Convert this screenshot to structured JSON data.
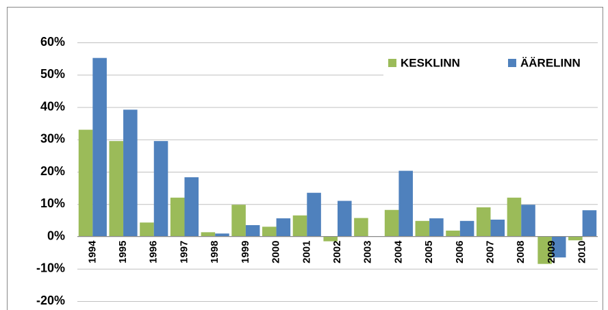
{
  "chart_data": {
    "type": "bar",
    "categories": [
      "1994",
      "1995",
      "1996",
      "1997",
      "1998",
      "1999",
      "2000",
      "2001",
      "2002",
      "2003",
      "2004",
      "2005",
      "2006",
      "2007",
      "2008",
      "2009",
      "2010"
    ],
    "series": [
      {
        "name": "KESKLINN",
        "color": "#9bbb59",
        "values": [
          33,
          29.5,
          4.3,
          12,
          1.3,
          9.8,
          3,
          6.5,
          -1.5,
          5.7,
          8.2,
          4.8,
          1.8,
          9,
          12,
          -8.5,
          -1.2
        ]
      },
      {
        "name": "ÄÄRELINN",
        "color": "#4f81bd",
        "values": [
          55.2,
          39.2,
          29.5,
          18.3,
          0.9,
          3.5,
          5.6,
          13.5,
          11,
          null,
          20.3,
          5.6,
          4.8,
          5.2,
          9.8,
          -6.5,
          8.1
        ]
      }
    ],
    "ylim": [
      -20,
      60
    ],
    "yticks": [
      {
        "value": -20,
        "label": "-20%"
      },
      {
        "value": -10,
        "label": "-10%"
      },
      {
        "value": 0,
        "label": "0%"
      },
      {
        "value": 10,
        "label": "10%"
      },
      {
        "value": 20,
        "label": "20%"
      },
      {
        "value": 30,
        "label": "30%"
      },
      {
        "value": 40,
        "label": "40%"
      },
      {
        "value": 50,
        "label": "50%"
      },
      {
        "value": 60,
        "label": "60%"
      }
    ],
    "grid": true,
    "legend": "top-right"
  }
}
